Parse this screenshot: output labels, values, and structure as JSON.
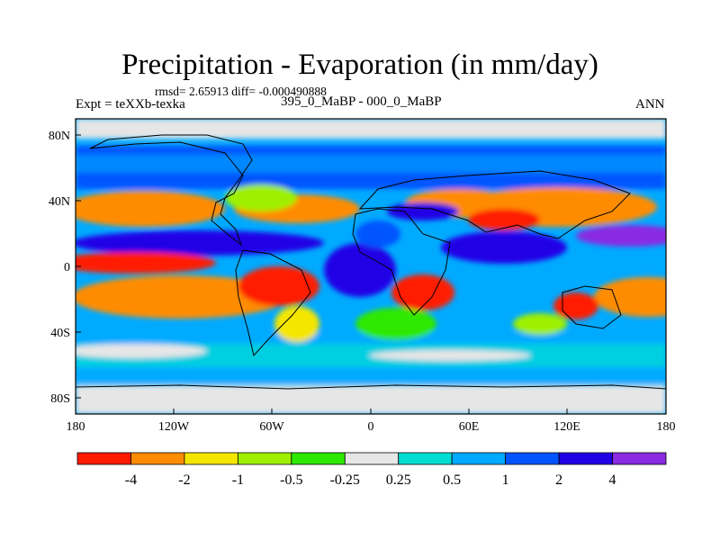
{
  "figure": {
    "title": "Precipitation - Evaporation (in mm/day)",
    "stats": "rmsd= 2.65913 diff= -0.000490888",
    "experiment": "Expt = teXXb-texka",
    "case": "395_0_MaBP - 000_0_MaBP",
    "season": "ANN"
  },
  "axes": {
    "lat_ticks": [
      "80N",
      "40N",
      "0",
      "40S",
      "80S"
    ],
    "lon_ticks": [
      "180",
      "120W",
      "60W",
      "0",
      "60E",
      "120E",
      "180"
    ]
  },
  "colorbar": {
    "levels": [
      "-4",
      "-2",
      "-1",
      "-0.5",
      "-0.25",
      "0.25",
      "0.5",
      "1",
      "2",
      "4"
    ],
    "colors": [
      "#ff1a00",
      "#ff8c00",
      "#f5e600",
      "#9ef000",
      "#2ee800",
      "#e6e6e6",
      "#00ded4",
      "#00aaff",
      "#0055ff",
      "#2200e6",
      "#8a2be2"
    ]
  },
  "chart_data": {
    "type": "heatmap",
    "title": "Precipitation - Evaporation (in mm/day)",
    "units": "mm/day",
    "x_range": [
      -180,
      180
    ],
    "y_range": [
      -90,
      90
    ],
    "contour_levels": [
      -4,
      -2,
      -1,
      -0.5,
      -0.25,
      0.25,
      0.5,
      1,
      2,
      4
    ],
    "annotation": "rmsd= 2.65913 diff= -0.000490888"
  }
}
